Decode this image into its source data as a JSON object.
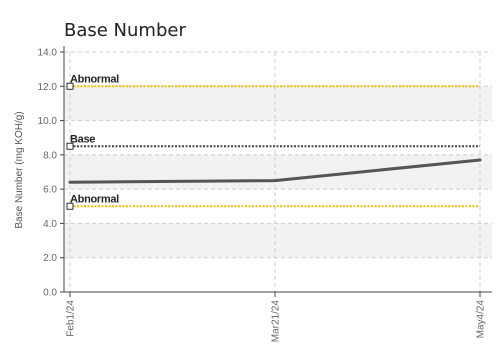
{
  "chart_data": {
    "type": "line",
    "title": "Base Number",
    "xlabel": "",
    "ylabel": "Base Number (mg KOH/g)",
    "ylim": [
      0,
      14
    ],
    "yticks": [
      "0.0",
      "2.0",
      "4.0",
      "6.0",
      "8.0",
      "10.0",
      "12.0",
      "14.0"
    ],
    "x": [
      "Feb1/24",
      "Mar21/24",
      "May4/24"
    ],
    "series": [
      {
        "values": [
          6.4,
          6.5,
          7.7
        ],
        "color": "#555555"
      }
    ],
    "reference_lines": [
      {
        "label": "Abnormal",
        "value": 12.0,
        "color": "#f0c000",
        "style": "dotted"
      },
      {
        "label": "Base",
        "value": 8.5,
        "color": "#444444",
        "style": "dotted"
      },
      {
        "label": "Abnormal",
        "value": 5.0,
        "color": "#f0c000",
        "style": "dotted"
      }
    ],
    "grid": true,
    "band_colors": [
      "#f2f2f2",
      "#ffffff"
    ]
  }
}
